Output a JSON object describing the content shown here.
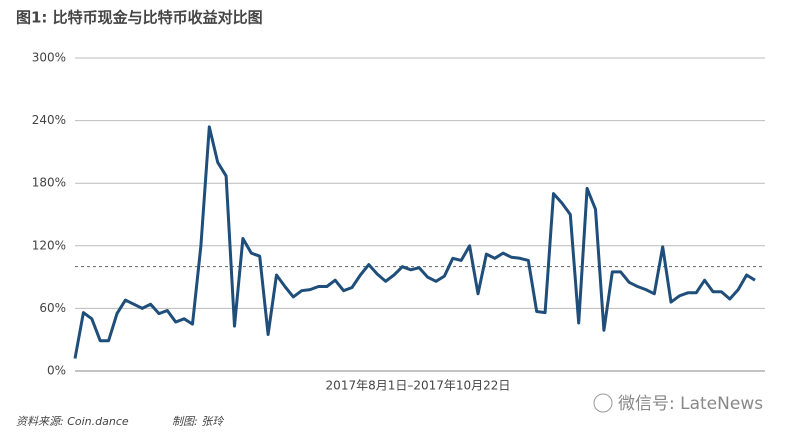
{
  "chart_data": {
    "type": "line",
    "title": "图1: 比特币现金与比特币收益对比图",
    "xlabel": "2017年8月1日–2017年10月22日",
    "source": "资料来源: Coin.dance",
    "credit": "制图: 张玲",
    "watermark": "微信号: LateNews",
    "color": "#1f4e7a",
    "values": [
      12,
      56,
      50,
      29,
      29,
      55,
      68,
      64,
      60,
      64,
      55,
      58,
      47,
      50,
      45,
      120,
      234,
      200,
      187,
      43,
      127,
      113,
      110,
      35,
      92,
      81,
      71,
      77,
      78,
      81,
      81,
      87,
      77,
      80,
      92,
      102,
      93,
      86,
      92,
      100,
      97,
      99,
      90,
      86,
      91,
      108,
      106,
      120,
      74,
      112,
      108,
      113,
      109,
      108,
      106,
      57,
      56,
      170,
      161,
      150,
      46,
      175,
      155,
      39,
      95,
      95,
      85,
      81,
      78,
      74,
      119,
      66,
      72,
      75,
      75,
      87,
      76,
      76,
      69,
      78,
      92,
      87
    ],
    "reference_line": 100,
    "ylim": [
      0,
      300
    ],
    "yticks": [
      {
        "value": 0,
        "label": "0%"
      },
      {
        "value": 60,
        "label": "60%"
      },
      {
        "value": 120,
        "label": "120%"
      },
      {
        "value": 180,
        "label": "180%"
      },
      {
        "value": 240,
        "label": "240%"
      },
      {
        "value": 300,
        "label": "300%"
      }
    ],
    "grid": true
  }
}
